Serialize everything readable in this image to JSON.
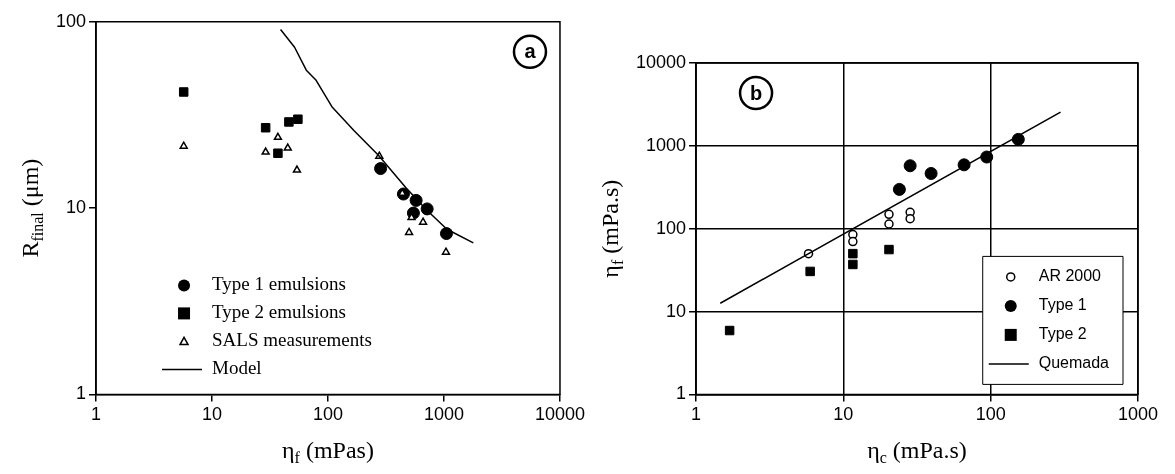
{
  "chart_data": [
    {
      "type": "scatter",
      "xlabel": "η$_{f}$ (mPas)",
      "ylabel": "R$_{final}$ (μm)",
      "log": "xy",
      "xlim": [
        1,
        10000
      ],
      "ylim": [
        1,
        100
      ],
      "xticks": [
        1,
        10,
        100,
        1000,
        10000
      ],
      "yticks": [
        1,
        10,
        100
      ],
      "grid": false,
      "legend": "bottom left",
      "annotations": [
        "a"
      ],
      "series": [
        {
          "name": "Type 1 emulsions",
          "marker": "circle",
          "color": "#000000",
          "x": [
            284,
            447,
            575,
            545,
            716,
            1050
          ],
          "values": [
            16.3,
            11.9,
            11,
            9.4,
            9.9,
            7.3
          ]
        },
        {
          "name": "Type 2 emulsions",
          "marker": "square",
          "color": "#000000",
          "x": [
            5.7,
            29,
            37,
            46,
            55
          ],
          "values": [
            42,
            27,
            19.7,
            29,
            30
          ]
        },
        {
          "name": "SALS measurements",
          "marker": "triangle",
          "color": "#ffffff",
          "x": [
            5.7,
            29,
            37,
            45,
            54,
            277,
            437,
            525,
            500,
            660,
            1040
          ],
          "values": [
            21.5,
            20,
            24,
            21,
            16,
            19,
            12,
            8.9,
            7.4,
            8.4,
            5.8
          ]
        },
        {
          "name": "Model",
          "type": "line",
          "marker": "none",
          "color": "#000000",
          "x": [
            39,
            51.5,
            65,
            79,
            108,
            168,
            272,
            468,
            705,
            1060,
            1790
          ],
          "values": [
            91,
            73,
            55,
            48.5,
            35,
            26,
            19.2,
            12.9,
            9.8,
            7.7,
            6.5
          ]
        }
      ]
    },
    {
      "type": "scatter",
      "xlabel": "η$_{c}$ (mPa.s)",
      "ylabel": "η$_{f}$ (mPa.s)",
      "log": "xy",
      "xlim": [
        1,
        1000
      ],
      "ylim": [
        1,
        10000
      ],
      "xticks": [
        1,
        10,
        100,
        1000
      ],
      "yticks": [
        1,
        10,
        100,
        1000,
        10000
      ],
      "grid": true,
      "legend": "bottom right",
      "annotations": [
        "b"
      ],
      "series": [
        {
          "name": "AR 2000",
          "marker": "circle",
          "color": "#ffffff",
          "x": [
            5.8,
            11.6,
            11.6,
            20.4,
            20.4,
            28.4,
            28.4
          ],
          "values": [
            50,
            85,
            70,
            149,
            114,
            158,
            132
          ]
        },
        {
          "name": "Type 1",
          "marker": "circle",
          "color": "#000000",
          "x": [
            24,
            28.4,
            39.4,
            66,
            94,
            154
          ],
          "values": [
            298,
            575,
            464,
            590,
            733,
            1197
          ]
        },
        {
          "name": "Type 2",
          "marker": "square",
          "color": "#000000",
          "x": [
            1.69,
            5.95,
            11.6,
            11.6,
            20.4
          ],
          "values": [
            5.9,
            30.5,
            50,
            37,
            56
          ]
        },
        {
          "name": "Quemada",
          "type": "line",
          "marker": "none",
          "color": "#000000",
          "x": [
            1.46,
            298
          ],
          "values": [
            12.6,
            2550
          ]
        }
      ]
    }
  ]
}
